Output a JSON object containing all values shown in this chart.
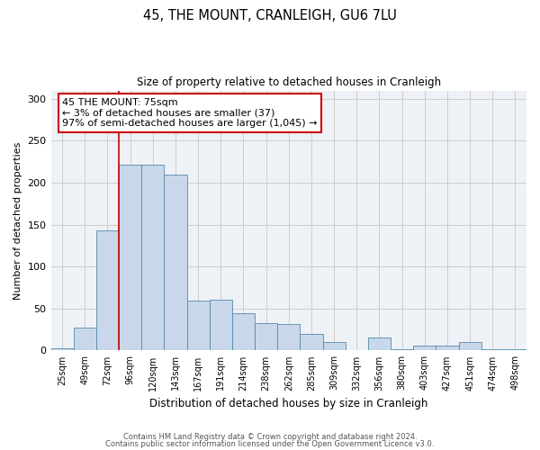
{
  "title": "45, THE MOUNT, CRANLEIGH, GU6 7LU",
  "subtitle": "Size of property relative to detached houses in Cranleigh",
  "xlabel": "Distribution of detached houses by size in Cranleigh",
  "ylabel": "Number of detached properties",
  "bar_values": [
    3,
    27,
    143,
    221,
    222,
    210,
    60,
    61,
    44,
    33,
    32,
    20,
    10,
    0,
    16,
    2,
    6,
    6,
    10,
    2,
    1
  ],
  "bin_labels": [
    "25sqm",
    "49sqm",
    "72sqm",
    "96sqm",
    "120sqm",
    "143sqm",
    "167sqm",
    "191sqm",
    "214sqm",
    "238sqm",
    "262sqm",
    "285sqm",
    "309sqm",
    "332sqm",
    "356sqm",
    "380sqm",
    "403sqm",
    "427sqm",
    "451sqm",
    "474sqm",
    "498sqm"
  ],
  "bar_color": "#c8d8ea",
  "bar_edge_color": "#5588aa",
  "grid_color": "#cccccc",
  "vline_x": 2.5,
  "vline_color": "#cc0000",
  "annotation_text": "45 THE MOUNT: 75sqm\n← 3% of detached houses are smaller (37)\n97% of semi-detached houses are larger (1,045) →",
  "annotation_box_color": "#ffffff",
  "annotation_box_edge": "#cc0000",
  "ylim": [
    0,
    310
  ],
  "yticks": [
    0,
    50,
    100,
    150,
    200,
    250,
    300
  ],
  "footer_line1": "Contains HM Land Registry data © Crown copyright and database right 2024.",
  "footer_line2": "Contains public sector information licensed under the Open Government Licence v3.0.",
  "bg_color": "#eef2f7"
}
